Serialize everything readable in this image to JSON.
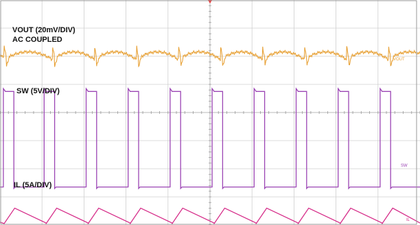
{
  "chart_data": {
    "type": "line",
    "grid": true,
    "grid_divisions": {
      "x": 10,
      "y": 8
    },
    "x_divisions": [
      0,
      10
    ],
    "y_divisions": [
      0,
      8
    ],
    "switching_cycles_shown": 10,
    "colors": {
      "grid": "#cfcfcf",
      "center_marker": "#ee3333",
      "background": "#ffffff",
      "frame": "#999999"
    },
    "annotations": [
      {
        "text": "VOUT (20mV/DIV)",
        "series": "VOUT"
      },
      {
        "text": "AC COUPLED",
        "series": "VOUT"
      },
      {
        "text": "SW (5V/DIV)",
        "series": "SW"
      },
      {
        "text": "IL (5A/DIV)",
        "series": "IL"
      }
    ],
    "series": [
      {
        "name": "VOUT",
        "marker": "VOUT",
        "color": "#e8a33a",
        "baseline_div": 6.0,
        "ripple_peak_to_peak_div": 0.55,
        "spike_amplitude_div": 0.5,
        "edge_times_div": [
          0.1,
          1.25,
          2.25,
          3.25,
          4.25,
          5.25,
          6.25,
          7.25,
          8.25,
          9.25
        ]
      },
      {
        "name": "SW",
        "marker": "SW",
        "color": "#9b45b4",
        "low_div": 1.35,
        "high_div": 4.75,
        "pulse_width_div": 0.25,
        "rising_edges_div": [
          0.08,
          1.05,
          2.05,
          3.05,
          4.05,
          5.05,
          6.05,
          7.05,
          8.05,
          9.05
        ]
      },
      {
        "name": "IL",
        "marker": "IL",
        "color": "#d62e8a",
        "valley_div": 0.05,
        "peak_div": 0.6,
        "valley_times_div": [
          0.1,
          1.1,
          2.1,
          3.1,
          4.1,
          5.1,
          6.1,
          7.1,
          8.1,
          9.1
        ]
      }
    ]
  }
}
